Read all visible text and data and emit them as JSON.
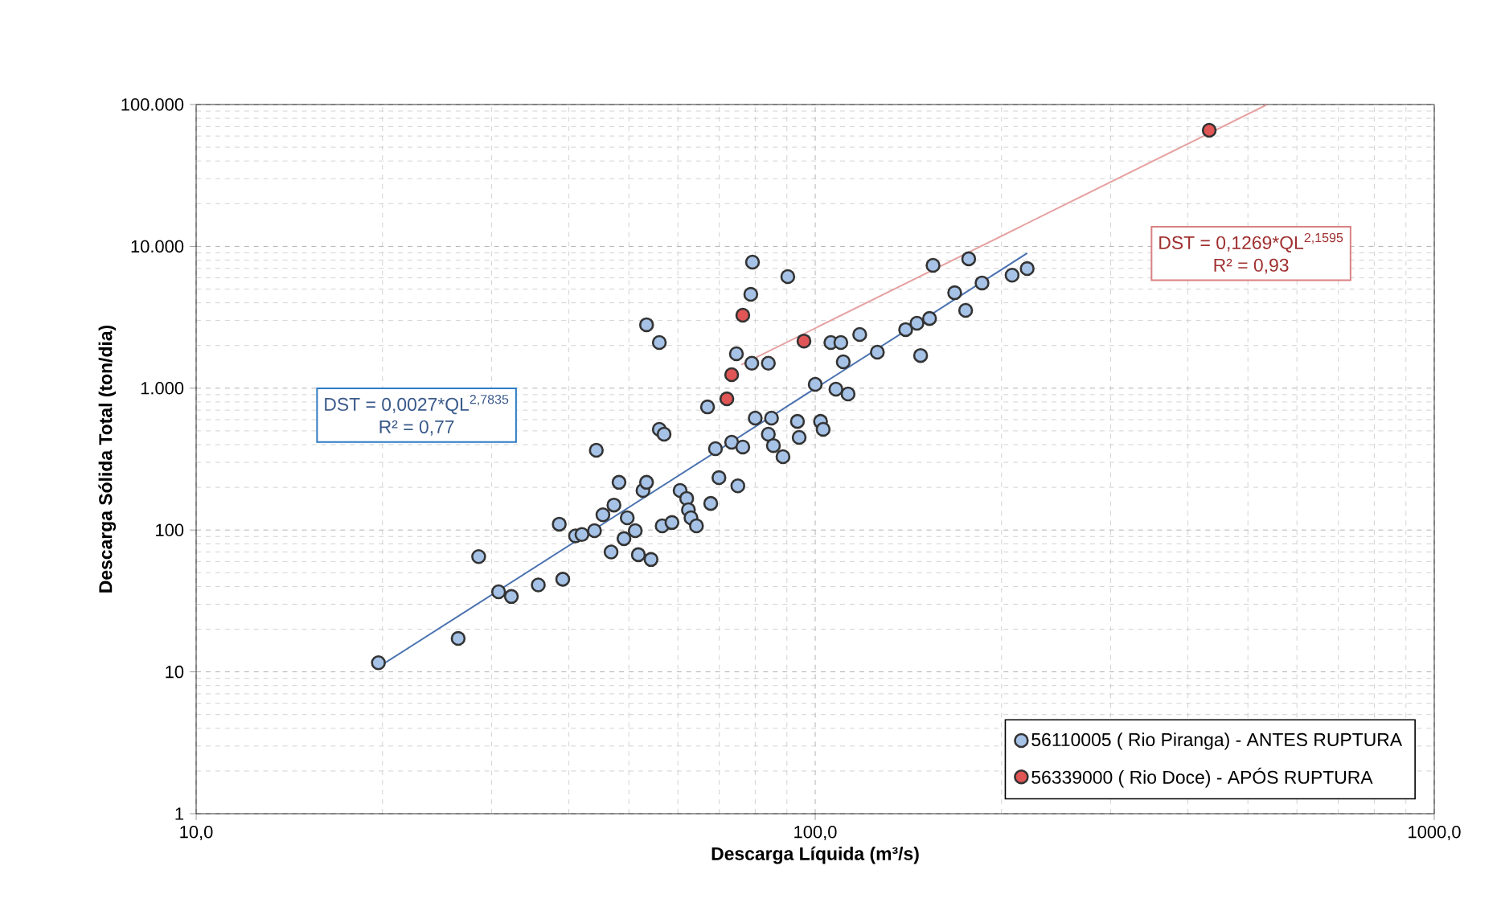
{
  "chart_data": {
    "type": "scatter",
    "xlabel": "Descarga Líquida (m³/s)",
    "ylabel": "Descarga Sólida Total (ton/dia)",
    "log": "xy",
    "grid": true,
    "legend": "bottom right",
    "xlim": [
      10,
      1000
    ],
    "ylim": [
      1,
      100000
    ],
    "xticks": [
      {
        "value": 10,
        "label": "10,0"
      },
      {
        "value": 100,
        "label": "100,0"
      },
      {
        "value": 1000,
        "label": "1000,0"
      }
    ],
    "yticks": [
      1,
      10,
      100,
      {
        "value": 1000,
        "label": "1.000"
      },
      {
        "value": 10000,
        "label": "10.000"
      },
      {
        "value": 100000,
        "label": "100.000"
      }
    ],
    "annotations": [
      "DST = 0,0027*QL$^{2,7835}$",
      "R² = 0,77",
      "DST = 0,1269*QL$^{2,1595}$",
      "R² = 0,93"
    ],
    "series": [
      {
        "name": "56110005 ( Rio Piranga) - ANTES RUPTURA",
        "marker": "circle",
        "color": "#a6c2e6",
        "x": [
          19.7,
          26.5,
          28.6,
          30.8,
          32.3,
          35.7,
          38.6,
          39.1,
          41,
          42,
          44,
          44.3,
          45.4,
          46.8,
          47.3,
          48.2,
          49.1,
          49.7,
          51.2,
          51.8,
          52.7,
          53.4,
          53.4,
          54.3,
          56,
          56,
          57,
          56.6,
          58.7,
          60.5,
          62,
          62.4,
          63,
          64.3,
          67,
          67.8,
          69,
          69.9,
          73.3,
          75,
          76.4,
          79.2,
          78.7,
          74.6,
          79,
          84,
          80,
          85,
          84,
          85.6,
          88.7,
          90.3,
          93.6,
          94.2,
          100,
          102,
          103,
          106,
          110,
          108,
          113,
          111,
          118,
          126,
          140,
          146,
          148,
          153,
          155,
          168,
          175,
          177,
          186,
          208,
          220
        ],
        "values": [
          11.6,
          17.2,
          65,
          36.7,
          34,
          41,
          110,
          45,
          91,
          93,
          99,
          365,
          128,
          70,
          150,
          217,
          87,
          122,
          99,
          67,
          190,
          217,
          2800,
          62,
          2100,
          513,
          474,
          107,
          113,
          190,
          167,
          139,
          122,
          107,
          738,
          154,
          375,
          234,
          416,
          205,
          385,
          7740,
          4590,
          1750,
          1500,
          1500,
          615,
          615,
          474,
          394,
          329,
          6120,
          583,
          450,
          1064,
          583,
          513,
          2100,
          2100,
          984,
          910,
          1535,
          2390,
          1795,
          2590,
          2870,
          1700,
          3100,
          7350,
          4710,
          3540,
          8170,
          5520,
          6260,
          6970
        ]
      },
      {
        "name": "56339000 ( Rio Doce) - APÓS RUPTURA",
        "marker": "circle",
        "color": "#e05555",
        "x": [
          76.4,
          73.3,
          72,
          95.9,
          433
        ],
        "values": [
          3270,
          1245,
          841,
          2150,
          65900
        ]
      },
      {
        "type": "line",
        "marker": "none",
        "color": "#4a72b0",
        "x": [
          19.7,
          220
        ],
        "values": [
          10.8,
          8950
        ]
      },
      {
        "type": "line",
        "marker": "none",
        "color": "#e6a0a0",
        "x": [
          76,
          537
        ],
        "values": [
          1463,
          100000
        ]
      }
    ]
  }
}
